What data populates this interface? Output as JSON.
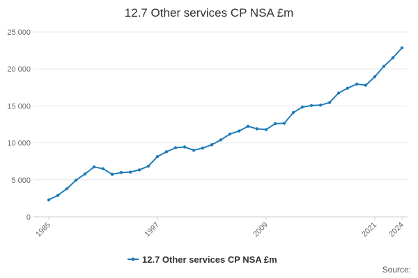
{
  "chart_data": {
    "type": "line",
    "title": "12.7 Other services CP NSA £m",
    "xlabel": "",
    "ylabel": "",
    "ylim": [
      0,
      25000
    ],
    "xlim": [
      1985,
      2024
    ],
    "y_ticks": [
      0,
      5000,
      10000,
      15000,
      20000,
      25000
    ],
    "y_tick_labels": [
      "0",
      "5 000",
      "10 000",
      "15 000",
      "20 000",
      "25 000"
    ],
    "x_ticks": [
      1985,
      1997,
      2009,
      2021,
      2024
    ],
    "x_tick_labels": [
      "1985",
      "1997",
      "2009",
      "2021",
      "2024"
    ],
    "grid": true,
    "legend_position": "bottom-center",
    "series": [
      {
        "name": "12.7 Other services CP NSA £m",
        "color": "#1f7bb8",
        "x": [
          1985,
          1986,
          1987,
          1988,
          1989,
          1990,
          1991,
          1992,
          1993,
          1994,
          1995,
          1996,
          1997,
          1998,
          1999,
          2000,
          2001,
          2002,
          2003,
          2004,
          2005,
          2006,
          2007,
          2008,
          2009,
          2010,
          2011,
          2012,
          2013,
          2014,
          2015,
          2016,
          2017,
          2018,
          2019,
          2020,
          2021,
          2022,
          2023,
          2024
        ],
        "values": [
          2300,
          2900,
          3800,
          4950,
          5800,
          6750,
          6500,
          5750,
          6000,
          6050,
          6350,
          6850,
          8150,
          8800,
          9350,
          9450,
          9000,
          9300,
          9750,
          10400,
          11200,
          11600,
          12250,
          11900,
          11800,
          12600,
          12650,
          14100,
          14850,
          15050,
          15100,
          15450,
          16750,
          17400,
          17950,
          17800,
          18950,
          20350,
          21500,
          22850
        ]
      }
    ]
  },
  "source_label": "Source:"
}
